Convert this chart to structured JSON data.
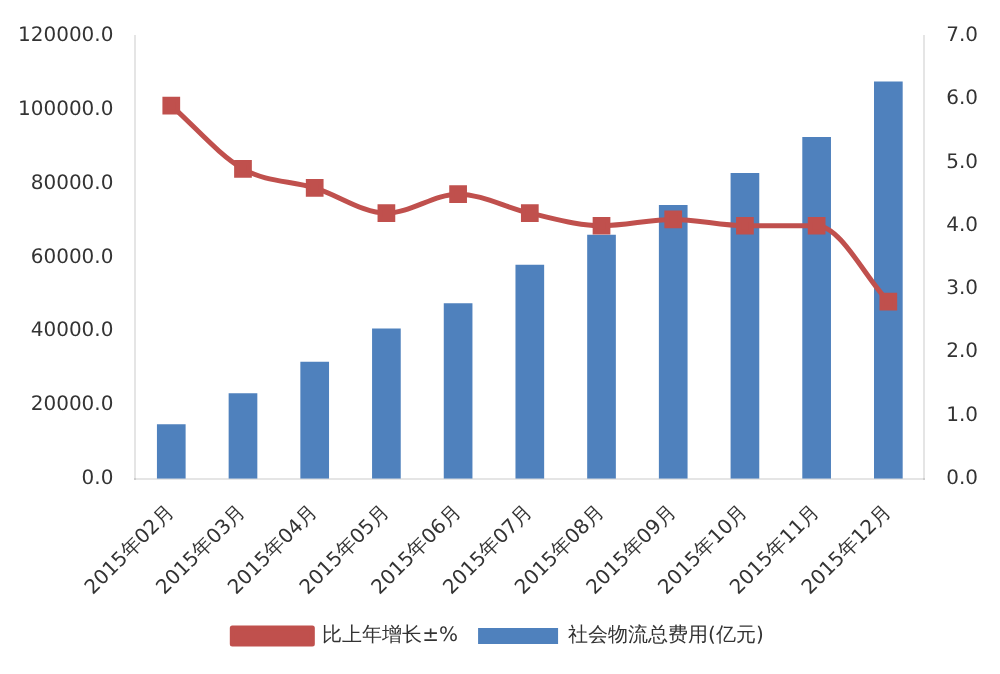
{
  "chart_data": {
    "type": "bar",
    "categories": [
      "2015年02月",
      "2015年03月",
      "2015年04月",
      "2015年05月",
      "2015年06月",
      "2015年07月",
      "2015年08月",
      "2015年09月",
      "2015年10月",
      "2015年11月",
      "2015年12月"
    ],
    "series": [
      {
        "name": "社会物流总费用(亿元)",
        "color": "#4f81bd",
        "values": [
          14800,
          23200,
          31700,
          40700,
          47600,
          58000,
          66100,
          74200,
          82900,
          92600,
          107700
        ]
      },
      {
        "name": "比上年增长±%",
        "type": "line",
        "axis": "y2",
        "color": "#c0504d",
        "values": [
          5.9,
          4.9,
          4.6,
          4.2,
          4.5,
          4.2,
          4.0,
          4.1,
          4.0,
          4.0,
          2.8
        ]
      }
    ],
    "ylim": [
      0,
      120000
    ],
    "yticks": [
      {
        "value": 0,
        "label": "0.0"
      },
      {
        "value": 20000,
        "label": "20000.0"
      },
      {
        "value": 40000,
        "label": "40000.0"
      },
      {
        "value": 60000,
        "label": "60000.0"
      },
      {
        "value": 80000,
        "label": "80000.0"
      },
      {
        "value": 100000,
        "label": "100000.0"
      },
      {
        "value": 120000,
        "label": "120000.0"
      }
    ],
    "y2lim": [
      0,
      7
    ],
    "y2ticks": [
      {
        "value": 0,
        "label": "0.0"
      },
      {
        "value": 1,
        "label": "1.0"
      },
      {
        "value": 2,
        "label": "2.0"
      },
      {
        "value": 3,
        "label": "3.0"
      },
      {
        "value": 4,
        "label": "4.0"
      },
      {
        "value": 5,
        "label": "5.0"
      },
      {
        "value": 6,
        "label": "6.0"
      },
      {
        "value": 7,
        "label": "7.0"
      }
    ],
    "legend": "bottom",
    "marker": "square",
    "grid": false
  }
}
